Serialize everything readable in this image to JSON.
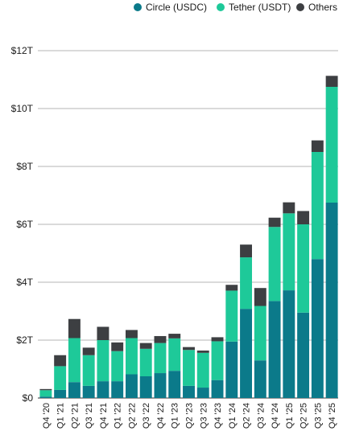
{
  "chart_data": {
    "type": "bar",
    "stacked": true,
    "categories": [
      "Q4 '20",
      "Q1 '21",
      "Q2 '21",
      "Q3 '21",
      "Q4 '21",
      "Q1 '22",
      "Q2 '22",
      "Q3 '22",
      "Q4 '22",
      "Q1 '23",
      "Q2 '23",
      "Q3 '23",
      "Q4 '23",
      "Q1 '24",
      "Q2 '24",
      "Q3 '24",
      "Q4 '24",
      "Q1 '25",
      "Q2 '25",
      "Q3 '25",
      "Q4 '25"
    ],
    "series": [
      {
        "name": "Circle (USDC)",
        "color": "#0b7a8a",
        "values": [
          0.05,
          0.28,
          0.55,
          0.42,
          0.58,
          0.58,
          0.82,
          0.75,
          0.86,
          0.94,
          0.42,
          0.36,
          0.62,
          1.95,
          3.08,
          1.3,
          3.35,
          3.72,
          2.95,
          4.8,
          6.75
        ]
      },
      {
        "name": "Tether (USDT)",
        "color": "#1ec999",
        "values": [
          0.22,
          0.82,
          1.52,
          1.06,
          1.42,
          1.04,
          1.25,
          0.95,
          1.04,
          1.12,
          1.24,
          1.2,
          1.34,
          1.76,
          1.78,
          1.88,
          2.56,
          2.66,
          3.05,
          3.7,
          4.0
        ]
      },
      {
        "name": "Others",
        "color": "#3d3f42",
        "values": [
          0.04,
          0.38,
          0.66,
          0.26,
          0.46,
          0.3,
          0.28,
          0.2,
          0.24,
          0.16,
          0.1,
          0.08,
          0.14,
          0.2,
          0.44,
          0.62,
          0.32,
          0.38,
          0.46,
          0.4,
          0.38
        ]
      }
    ],
    "ylim": [
      0,
      12
    ],
    "yticks": [
      "$0",
      "$2T",
      "$4T",
      "$6T",
      "$8T",
      "$10T",
      "$12T"
    ],
    "ytick_values": [
      0,
      2,
      4,
      6,
      8,
      10,
      12
    ],
    "grid": true,
    "legend_position": "top-right"
  },
  "legend": [
    {
      "label": "Circle (USDC)",
      "color": "#0b7a8a"
    },
    {
      "label": "Tether (USDT)",
      "color": "#1ec999"
    },
    {
      "label": "Others",
      "color": "#3d3f42"
    }
  ]
}
